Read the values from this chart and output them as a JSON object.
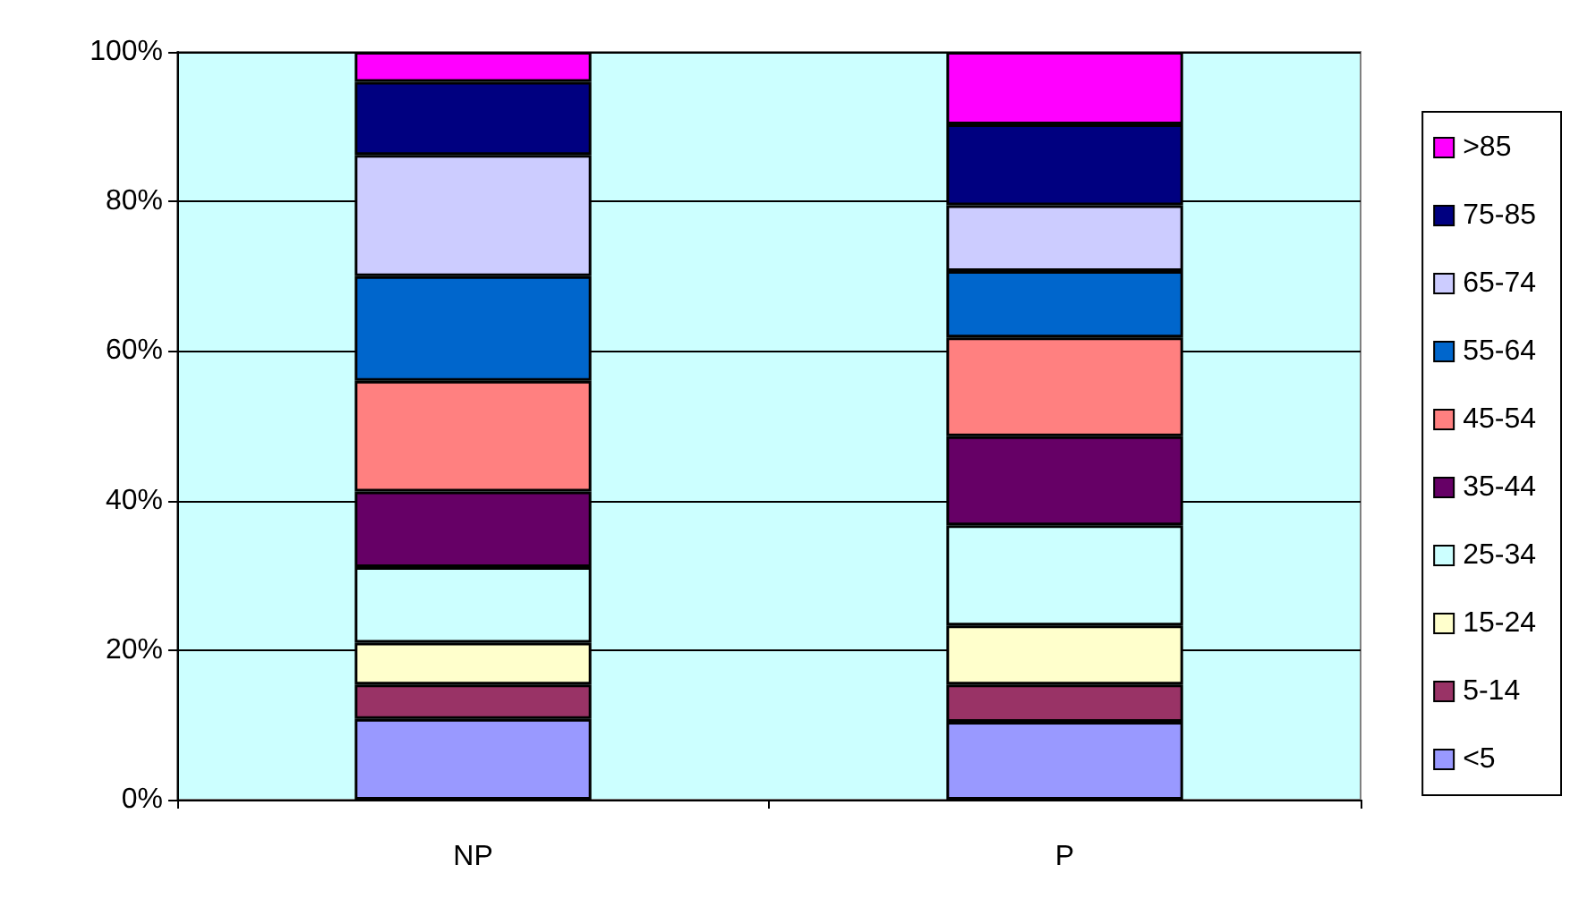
{
  "chart_data": {
    "type": "bar",
    "stacked": true,
    "categories": [
      "NP",
      "P"
    ],
    "series": [
      {
        "name": "<5",
        "color": "#9999ff",
        "values": [
          10.8,
          10.4
        ]
      },
      {
        "name": "5-14",
        "color": "#993366",
        "values": [
          4.6,
          5.0
        ]
      },
      {
        "name": "15-24",
        "color": "#ffffcc",
        "values": [
          5.6,
          7.9
        ]
      },
      {
        "name": "25-34",
        "color": "#ccffff",
        "values": [
          10.1,
          13.4
        ]
      },
      {
        "name": "35-44",
        "color": "#660066",
        "values": [
          10.1,
          11.9
        ]
      },
      {
        "name": "45-54",
        "color": "#ff8080",
        "values": [
          14.8,
          13.2
        ]
      },
      {
        "name": "55-64",
        "color": "#0066cc",
        "values": [
          14.0,
          8.9
        ]
      },
      {
        "name": "65-74",
        "color": "#ccccff",
        "values": [
          16.2,
          8.8
        ]
      },
      {
        "name": "75-85",
        "color": "#000080",
        "values": [
          9.8,
          10.8
        ]
      },
      {
        "name": ">85",
        "color": "#ff00ff",
        "values": [
          4.0,
          9.7
        ]
      }
    ],
    "ylim": [
      0,
      100
    ],
    "yticks": [
      {
        "value": 0,
        "label": "0%"
      },
      {
        "value": 20,
        "label": "20%"
      },
      {
        "value": 40,
        "label": "40%"
      },
      {
        "value": 60,
        "label": "60%"
      },
      {
        "value": 80,
        "label": "80%"
      },
      {
        "value": 100,
        "label": "100%"
      }
    ],
    "grid": "y",
    "legend": "right"
  }
}
